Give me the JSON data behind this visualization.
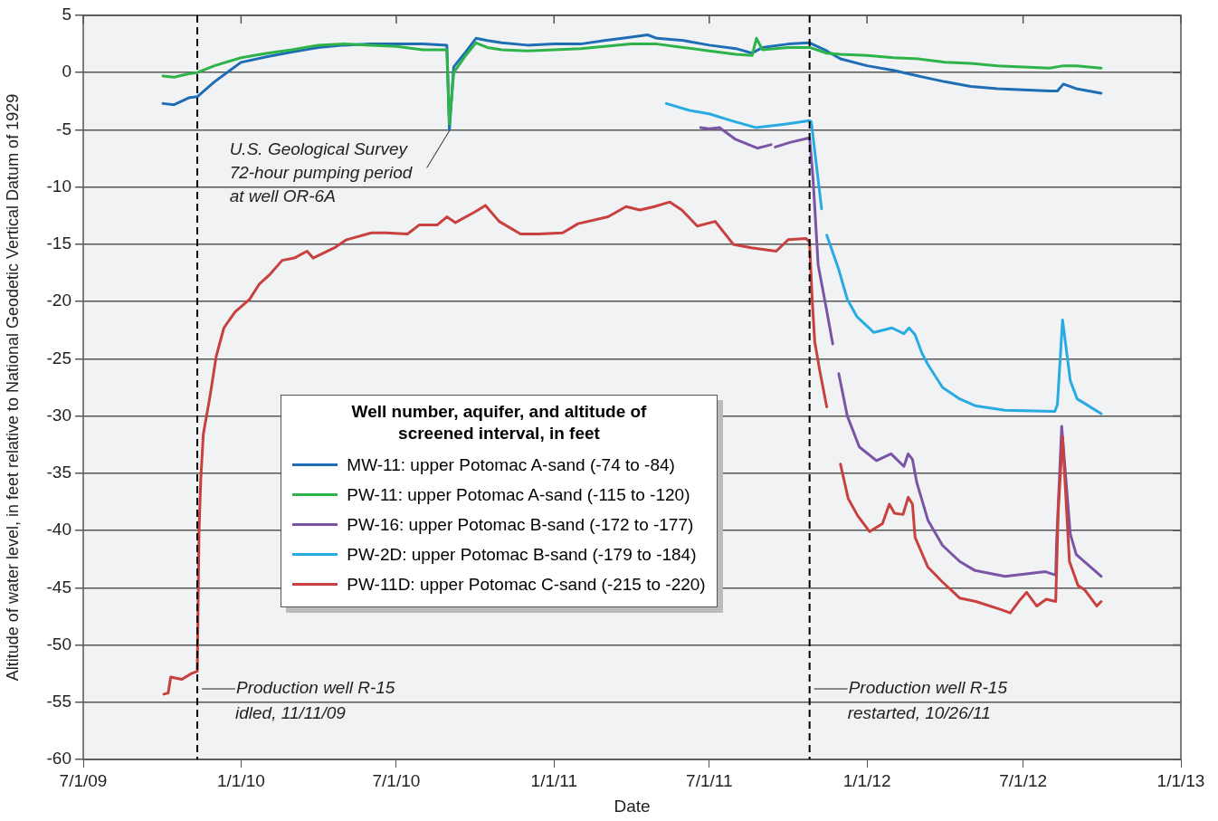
{
  "chart_data": {
    "type": "line",
    "xlabel": "Date",
    "ylabel": "Altitude of water level, in feet relative to National Geodetic Vertical Datum of 1929",
    "legend_title": "Well number, aquifer, and altitude of\nscreened interval, in feet",
    "legend": "center",
    "grid": "y",
    "xlim": [
      "2009-07-01",
      "2013-01-01"
    ],
    "xticks": [
      {
        "value": "2009-07-01",
        "label": "7/1/09"
      },
      {
        "value": "2010-01-01",
        "label": "1/1/10"
      },
      {
        "value": "2010-07-01",
        "label": "7/1/10"
      },
      {
        "value": "2011-01-01",
        "label": "1/1/11"
      },
      {
        "value": "2011-07-01",
        "label": "7/1/11"
      },
      {
        "value": "2012-01-01",
        "label": "1/1/12"
      },
      {
        "value": "2012-07-01",
        "label": "7/1/12"
      },
      {
        "value": "2013-01-01",
        "label": "1/1/13"
      }
    ],
    "ylim": [
      -60,
      5
    ],
    "yticks": [
      -60,
      -55,
      -50,
      -45,
      -40,
      -35,
      -30,
      -25,
      -20,
      -15,
      -10,
      -5,
      0,
      5
    ],
    "ref_lines": [
      {
        "axis": "x",
        "value": "2009-11-11",
        "label": "Production well R-15\nidled, 11/11/09",
        "color": "#000000",
        "line_style": "dashed"
      },
      {
        "axis": "x",
        "value": "2011-10-26",
        "label": "Production well R-15\nrestarted, 10/26/11",
        "color": "#000000",
        "line_style": "dashed"
      }
    ],
    "annotations": [
      {
        "text": "U.S. Geological Survey\n72-hour pumping period\nat well OR-6A",
        "x": "2010-09-01",
        "y": -5
      }
    ],
    "series": [
      {
        "name": "MW-11: upper Potomac A-sand (-74 to -84)",
        "color": "#1f6db5",
        "x": [
          "2009-10-02",
          "2009-10-15",
          "2009-11-01",
          "2009-11-11",
          "2009-12-01",
          "2010-01-01",
          "2010-02-01",
          "2010-03-01",
          "2010-04-01",
          "2010-05-01",
          "2010-06-01",
          "2010-07-01",
          "2010-08-01",
          "2010-08-29",
          "2010-09-01",
          "2010-09-06",
          "2010-09-20",
          "2010-10-02",
          "2010-10-15",
          "2010-11-01",
          "2010-12-01",
          "2011-01-01",
          "2011-02-01",
          "2011-03-01",
          "2011-04-01",
          "2011-04-20",
          "2011-05-01",
          "2011-06-01",
          "2011-07-01",
          "2011-08-01",
          "2011-08-20",
          "2011-09-01",
          "2011-10-01",
          "2011-10-26",
          "2011-11-15",
          "2011-12-01",
          "2012-01-01",
          "2012-02-01",
          "2012-03-01",
          "2012-04-01",
          "2012-05-01",
          "2012-06-01",
          "2012-07-01",
          "2012-08-01",
          "2012-08-10",
          "2012-08-17",
          "2012-09-01",
          "2012-09-30"
        ],
        "values": [
          -2.7,
          -2.8,
          -2.2,
          -2.1,
          -0.8,
          0.9,
          1.4,
          1.8,
          2.2,
          2.4,
          2.5,
          2.5,
          2.5,
          2.4,
          -5.0,
          0.5,
          1.8,
          3.0,
          2.8,
          2.6,
          2.4,
          2.5,
          2.5,
          2.8,
          3.1,
          3.3,
          3.0,
          2.8,
          2.4,
          2.1,
          1.7,
          2.2,
          2.5,
          2.6,
          1.9,
          1.2,
          0.6,
          0.2,
          -0.3,
          -0.8,
          -1.2,
          -1.4,
          -1.5,
          -1.6,
          -1.6,
          -1.0,
          -1.4,
          -1.8
        ]
      },
      {
        "name": "PW-11: upper Potomac A-sand (-115 to -120)",
        "color": "#2db34a",
        "x": [
          "2009-10-02",
          "2009-10-15",
          "2009-11-01",
          "2009-11-11",
          "2009-12-01",
          "2010-01-01",
          "2010-02-01",
          "2010-03-01",
          "2010-04-01",
          "2010-05-01",
          "2010-06-01",
          "2010-07-01",
          "2010-08-01",
          "2010-08-29",
          "2010-09-01",
          "2010-09-06",
          "2010-09-20",
          "2010-10-02",
          "2010-10-15",
          "2010-11-01",
          "2010-12-01",
          "2011-01-01",
          "2011-02-01",
          "2011-03-01",
          "2011-04-01",
          "2011-05-01",
          "2011-06-01",
          "2011-07-01",
          "2011-08-01",
          "2011-08-20",
          "2011-08-25",
          "2011-09-01",
          "2011-10-01",
          "2011-10-26",
          "2011-11-15",
          "2011-12-01",
          "2012-01-01",
          "2012-02-01",
          "2012-03-01",
          "2012-04-01",
          "2012-05-01",
          "2012-06-01",
          "2012-07-01",
          "2012-08-01",
          "2012-08-17",
          "2012-09-01",
          "2012-09-30"
        ],
        "values": [
          -0.3,
          -0.4,
          -0.1,
          0.0,
          0.6,
          1.3,
          1.7,
          2.0,
          2.4,
          2.5,
          2.4,
          2.3,
          2.0,
          2.0,
          -4.5,
          0.0,
          1.5,
          2.6,
          2.2,
          2.0,
          1.9,
          2.0,
          2.1,
          2.3,
          2.5,
          2.5,
          2.2,
          1.9,
          1.6,
          1.5,
          3.0,
          2.0,
          2.2,
          2.2,
          1.7,
          1.6,
          1.5,
          1.3,
          1.2,
          0.9,
          0.8,
          0.6,
          0.5,
          0.4,
          0.6,
          0.6,
          0.4
        ]
      },
      {
        "name": "PW-16: upper Potomac B-sand (-172 to -177)",
        "color": "#7a55a6",
        "x": [
          "2011-06-21",
          "2011-07-01",
          "2011-07-13",
          "2011-07-31",
          "2011-08-26",
          "2011-09-11",
          "2011-09-14",
          "2011-09-16",
          "2011-10-03",
          "2011-10-26",
          "2011-10-30",
          "2011-11-05",
          "2011-11-15",
          "2011-11-22",
          "2011-11-25",
          "2011-11-29",
          "2011-12-09",
          "2011-12-23",
          "2012-01-12",
          "2012-01-29",
          "2012-02-13",
          "2012-02-18",
          "2012-02-23",
          "2012-02-28",
          "2012-03-12",
          "2012-03-29",
          "2012-04-18",
          "2012-05-06",
          "2012-06-10",
          "2012-07-27",
          "2012-08-08",
          "2012-08-09",
          "2012-08-15",
          "2012-08-25",
          "2012-09-01",
          "2012-09-30"
        ],
        "values": [
          -4.8,
          -4.9,
          -4.8,
          -5.8,
          -6.6,
          -6.3,
          null,
          -6.5,
          -6.1,
          -5.7,
          -9.2,
          -16.8,
          -20.8,
          -23.7,
          null,
          -26.3,
          -30.0,
          -32.7,
          -33.9,
          -33.3,
          -34.4,
          -33.3,
          -33.8,
          -35.8,
          -39.1,
          -41.3,
          -42.7,
          -43.5,
          -44.0,
          -43.6,
          -43.9,
          -41.1,
          -30.9,
          -40.3,
          -42.1,
          -44.0
        ]
      },
      {
        "name": "PW-2D: upper Potomac B-sand (-179 to -184)",
        "color": "#29abe2",
        "x": [
          "2011-05-12",
          "2011-06-08",
          "2011-07-01",
          "2011-07-27",
          "2011-08-24",
          "2011-09-27",
          "2011-10-26",
          "2011-10-28",
          "2011-11-09",
          "2011-11-12",
          "2011-11-15",
          "2011-11-29",
          "2011-12-09",
          "2011-12-20",
          "2012-01-09",
          "2012-01-30",
          "2012-02-13",
          "2012-02-19",
          "2012-02-26",
          "2012-03-05",
          "2012-03-12",
          "2012-03-29",
          "2012-04-18",
          "2012-05-06",
          "2012-06-10",
          "2012-08-07",
          "2012-08-10",
          "2012-08-16",
          "2012-08-25",
          "2012-09-02",
          "2012-09-30"
        ],
        "values": [
          -2.7,
          -3.3,
          -3.6,
          -4.2,
          -4.8,
          -4.5,
          -4.2,
          -4.3,
          -11.9,
          null,
          -14.2,
          -17.2,
          -19.8,
          -21.3,
          -22.7,
          -22.3,
          -22.8,
          -22.3,
          -22.9,
          -24.5,
          -25.5,
          -27.5,
          -28.5,
          -29.1,
          -29.5,
          -29.6,
          -29.0,
          -21.6,
          -26.9,
          -28.5,
          -29.8
        ]
      },
      {
        "name": "PW-11D: upper Potomac C-sand (-215 to -220)",
        "color": "#c8413e",
        "x": [
          "2009-10-03",
          "2009-10-08",
          "2009-10-11",
          "2009-10-24",
          "2009-11-04",
          "2009-11-11",
          "2009-11-13",
          "2009-11-15",
          "2009-11-18",
          "2009-11-26",
          "2009-12-03",
          "2009-12-12",
          "2009-12-25",
          "2010-01-11",
          "2010-01-22",
          "2010-02-04",
          "2010-02-18",
          "2010-03-04",
          "2010-03-19",
          "2010-03-26",
          "2010-04-20",
          "2010-05-04",
          "2010-06-02",
          "2010-06-19",
          "2010-07-14",
          "2010-07-28",
          "2010-08-18",
          "2010-08-29",
          "2010-09-08",
          "2010-09-30",
          "2010-10-13",
          "2010-10-29",
          "2010-11-23",
          "2010-12-14",
          "2011-01-11",
          "2011-01-29",
          "2011-03-05",
          "2011-03-26",
          "2011-04-11",
          "2011-04-28",
          "2011-05-16",
          "2011-05-30",
          "2011-06-17",
          "2011-07-08",
          "2011-07-29",
          "2011-08-19",
          "2011-09-17",
          "2011-10-01",
          "2011-10-22",
          "2011-10-26",
          "2011-10-29",
          "2011-11-01",
          "2011-11-07",
          "2011-11-15",
          "2011-11-23",
          "2011-12-01",
          "2011-12-10",
          "2011-12-21",
          "2012-01-04",
          "2012-01-19",
          "2012-01-27",
          "2012-02-02",
          "2012-02-12",
          "2012-02-18",
          "2012-02-23",
          "2012-02-26",
          "2012-03-12",
          "2012-03-29",
          "2012-04-18",
          "2012-05-07",
          "2012-06-05",
          "2012-06-16",
          "2012-06-27",
          "2012-07-05",
          "2012-07-17",
          "2012-07-28",
          "2012-08-08",
          "2012-08-11",
          "2012-08-16",
          "2012-08-24",
          "2012-09-03",
          "2012-09-11",
          "2012-09-25",
          "2012-09-30"
        ],
        "values": [
          -54.3,
          -54.2,
          -52.8,
          -53.0,
          -52.5,
          -52.3,
          -40.1,
          -35.6,
          -31.6,
          -28.2,
          -24.8,
          -22.3,
          -20.9,
          -19.8,
          -18.5,
          -17.6,
          -16.4,
          -16.2,
          -15.6,
          -16.2,
          -15.3,
          -14.6,
          -14.0,
          -14.0,
          -14.1,
          -13.3,
          -13.3,
          -12.6,
          -13.1,
          -12.2,
          -11.6,
          -13.0,
          -14.1,
          -14.1,
          -14.0,
          -13.2,
          -12.6,
          -11.7,
          -12.0,
          -11.7,
          -11.3,
          -12.0,
          -13.4,
          -13.0,
          -15.0,
          -15.3,
          -15.6,
          -14.6,
          -14.5,
          -14.8,
          -19.8,
          -23.5,
          -26.1,
          -29.2,
          null,
          -34.2,
          -37.2,
          -38.7,
          -40.1,
          -39.4,
          -37.7,
          -38.5,
          -38.6,
          -37.1,
          -37.7,
          -40.6,
          -43.2,
          -44.5,
          -45.9,
          -46.2,
          -46.9,
          -47.2,
          -46.1,
          -45.4,
          -46.6,
          -46.0,
          -46.2,
          -38.3,
          -31.8,
          -42.7,
          -44.8,
          -45.2,
          -46.6,
          -46.2
        ]
      }
    ]
  }
}
